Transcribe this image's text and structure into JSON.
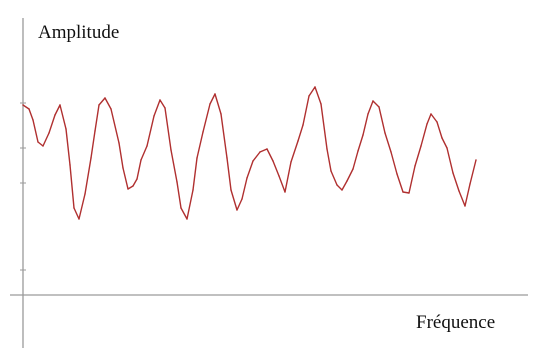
{
  "chart_data": {
    "type": "line",
    "title": "",
    "xlabel": "Fréquence",
    "ylabel": "Amplitude",
    "grid": false,
    "legend": "none",
    "x_tick_labels": [],
    "y_tick_labels": [],
    "xlim": [
      0,
      453
    ],
    "ylim": [
      -22,
      172
    ],
    "colors": {
      "axis": "#9a9a9a",
      "line": "#b03030",
      "line_dark": "#3a3a3a"
    },
    "series": [
      {
        "name": "",
        "x": [
          0,
          6,
          10,
          15,
          20,
          26,
          32,
          37,
          43,
          47,
          51,
          56,
          62,
          68,
          72,
          76,
          82,
          88,
          96,
          100,
          105,
          110,
          114,
          118,
          124,
          131,
          137,
          142,
          148,
          154,
          158,
          164,
          170,
          174,
          180,
          187,
          192,
          198,
          204,
          208,
          214,
          219,
          224,
          230,
          237,
          244,
          250,
          256,
          262,
          268,
          275,
          280,
          286,
          292,
          298,
          304,
          308,
          314,
          319,
          324,
          330,
          335,
          340,
          345,
          350,
          356,
          362,
          368,
          374,
          380,
          386,
          392,
          398,
          404,
          408,
          414,
          419,
          424,
          430,
          436,
          442,
          447,
          453
        ],
        "y": [
          145,
          141,
          130,
          108,
          104,
          117,
          135,
          145,
          121,
          85,
          42,
          31,
          56,
          92,
          119,
          145,
          152,
          141,
          107,
          82,
          61,
          64,
          71,
          90,
          104,
          134,
          150,
          142,
          100,
          68,
          42,
          31,
          60,
          92,
          118,
          146,
          156,
          136,
          92,
          60,
          40,
          51,
          72,
          89,
          98,
          101,
          89,
          74,
          58,
          88,
          109,
          125,
          154,
          163,
          146,
          101,
          79,
          65,
          60,
          69,
          81,
          99,
          115,
          136,
          149,
          143,
          117,
          98,
          76,
          58,
          57,
          84,
          104,
          126,
          136,
          128,
          112,
          102,
          77,
          59,
          44,
          66,
          90
        ]
      }
    ]
  }
}
